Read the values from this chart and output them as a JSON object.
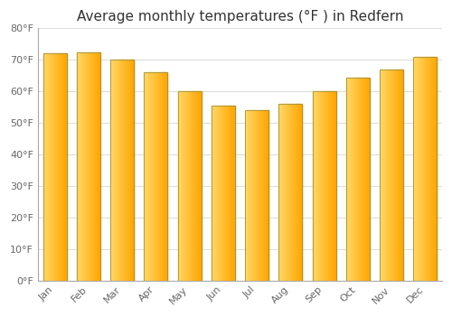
{
  "title": "Average monthly temperatures (°F ) in Redfern",
  "months": [
    "Jan",
    "Feb",
    "Mar",
    "Apr",
    "May",
    "Jun",
    "Jul",
    "Aug",
    "Sep",
    "Oct",
    "Nov",
    "Dec"
  ],
  "values": [
    72,
    72.5,
    70,
    66,
    60,
    55.5,
    54,
    56,
    60,
    64.5,
    67,
    71
  ],
  "ylim": [
    0,
    80
  ],
  "yticks": [
    0,
    10,
    20,
    30,
    40,
    50,
    60,
    70,
    80
  ],
  "ytick_labels": [
    "0°F",
    "10°F",
    "20°F",
    "30°F",
    "40°F",
    "50°F",
    "60°F",
    "70°F",
    "80°F"
  ],
  "bar_color_left": "#FFD966",
  "bar_color_right": "#FFA500",
  "bar_edge_color": "#888844",
  "background_color": "#FFFFFF",
  "grid_color": "#DDDDDD",
  "title_fontsize": 11,
  "tick_fontsize": 8,
  "bar_width": 0.7,
  "n_gradient_steps": 40
}
